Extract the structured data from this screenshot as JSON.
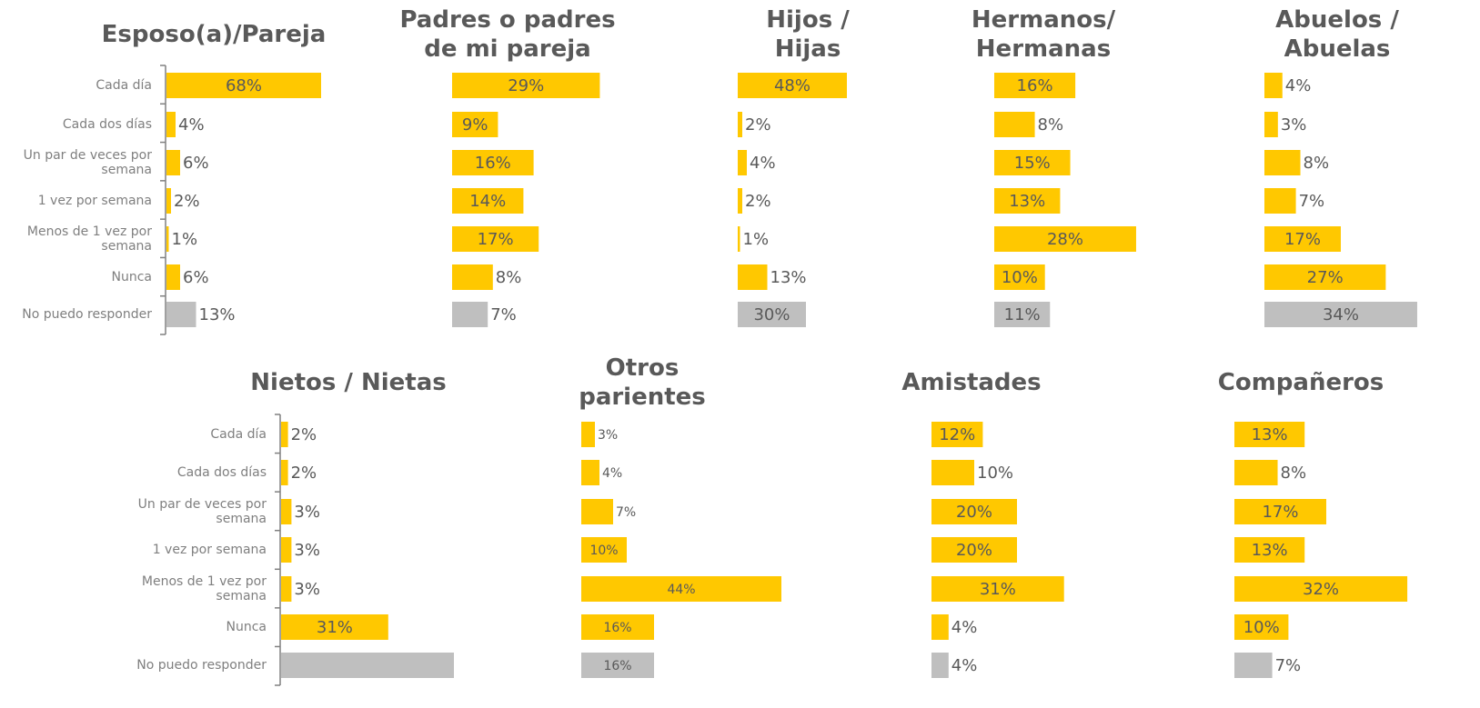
{
  "chart_data": [
    {
      "type": "bar",
      "title": "Esposo(a)/Pareja",
      "categories": [
        "Cada día",
        "Cada dos días",
        "Un par de veces por semana",
        "1 vez por semana",
        "Menos de 1 vez por semana",
        "Nunca",
        "No puedo responder"
      ],
      "values": [
        68,
        4,
        6,
        2,
        1,
        6,
        13
      ],
      "value_labels": [
        "68%",
        "4%",
        "6%",
        "2%",
        "1%",
        "6%",
        "13%"
      ],
      "colors": [
        "#FFC800",
        "#FFC800",
        "#FFC800",
        "#FFC800",
        "#FFC800",
        "#FFC800",
        "#BFBFBF"
      ]
    },
    {
      "type": "bar",
      "title": "Padres o padres de mi pareja",
      "values": [
        29,
        9,
        16,
        14,
        17,
        8,
        7
      ],
      "value_labels": [
        "29%",
        "9%",
        "16%",
        "14%",
        "17%",
        "8%",
        "7%"
      ],
      "colors": [
        "#FFC800",
        "#FFC800",
        "#FFC800",
        "#FFC800",
        "#FFC800",
        "#FFC800",
        "#BFBFBF"
      ]
    },
    {
      "type": "bar",
      "title": "Hijos / Hijas",
      "values": [
        48,
        2,
        4,
        2,
        1,
        13,
        30
      ],
      "value_labels": [
        "48%",
        "2%",
        "4%",
        "2%",
        "1%",
        "13%",
        "30%"
      ],
      "colors": [
        "#FFC800",
        "#FFC800",
        "#FFC800",
        "#FFC800",
        "#FFC800",
        "#FFC800",
        "#BFBFBF"
      ]
    },
    {
      "type": "bar",
      "title": "Hermanos/ Hermanas",
      "values": [
        16,
        8,
        15,
        13,
        28,
        10,
        11
      ],
      "value_labels": [
        "16%",
        "8%",
        "15%",
        "13%",
        "28%",
        "10%",
        "11%"
      ],
      "colors": [
        "#FFC800",
        "#FFC800",
        "#FFC800",
        "#FFC800",
        "#FFC800",
        "#FFC800",
        "#BFBFBF"
      ]
    },
    {
      "type": "bar",
      "title": "Abuelos / Abuelas",
      "values": [
        4,
        3,
        8,
        7,
        17,
        27,
        34
      ],
      "value_labels": [
        "4%",
        "3%",
        "8%",
        "7%",
        "17%",
        "27%",
        "34%"
      ],
      "colors": [
        "#FFC800",
        "#FFC800",
        "#FFC800",
        "#FFC800",
        "#FFC800",
        "#FFC800",
        "#BFBFBF"
      ]
    },
    {
      "type": "bar",
      "title": "Nietos / Nietas",
      "categories": [
        "Cada día",
        "Cada dos días",
        "Un par de veces por semana",
        "1 vez por semana",
        "Menos de 1 vez por semana",
        "Nunca",
        "No puedo responder"
      ],
      "values": [
        2,
        2,
        3,
        3,
        3,
        31,
        50
      ],
      "value_labels": [
        "2%",
        "2%",
        "3%",
        "3%",
        "3%",
        "31%",
        null
      ],
      "colors": [
        "#FFC800",
        "#FFC800",
        "#FFC800",
        "#FFC800",
        "#FFC800",
        "#FFC800",
        "#BFBFBF"
      ]
    },
    {
      "type": "bar",
      "title": "Otros parientes",
      "values": [
        3,
        4,
        7,
        10,
        44,
        16,
        16
      ],
      "value_labels": [
        "3%",
        "4%",
        "7%",
        "10%",
        "44%",
        "16%",
        "16%"
      ],
      "colors": [
        "#FFC800",
        "#FFC800",
        "#FFC800",
        "#FFC800",
        "#FFC800",
        "#FFC800",
        "#BFBFBF"
      ]
    },
    {
      "type": "bar",
      "title": "Amistades",
      "values": [
        12,
        10,
        20,
        20,
        31,
        4,
        4
      ],
      "value_labels": [
        "12%",
        "10%",
        "20%",
        "20%",
        "31%",
        "4%",
        "4%"
      ],
      "colors": [
        "#FFC800",
        "#FFC800",
        "#FFC800",
        "#FFC800",
        "#FFC800",
        "#FFC800",
        "#BFBFBF"
      ]
    },
    {
      "type": "bar",
      "title": "Compañeros",
      "values": [
        13,
        8,
        17,
        13,
        32,
        10,
        7
      ],
      "value_labels": [
        "13%",
        "8%",
        "17%",
        "13%",
        "32%",
        "10%",
        "7%"
      ],
      "colors": [
        "#FFC800",
        "#FFC800",
        "#FFC800",
        "#FFC800",
        "#FFC800",
        "#FFC800",
        "#BFBFBF"
      ]
    }
  ]
}
